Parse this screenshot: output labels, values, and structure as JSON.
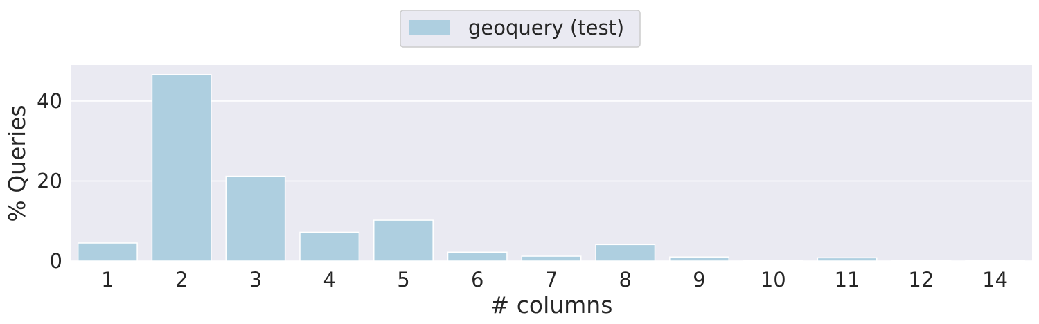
{
  "chart_data": {
    "type": "bar",
    "categories": [
      "1",
      "2",
      "3",
      "4",
      "5",
      "6",
      "7",
      "8",
      "9",
      "10",
      "11",
      "12",
      "14"
    ],
    "series": [
      {
        "name": "geoquery (test)",
        "values": [
          4.5,
          46.6,
          21.2,
          7.2,
          10.2,
          2.2,
          1.2,
          4.1,
          1.0,
          0.2,
          0.8,
          0.2,
          0.2
        ]
      }
    ],
    "xlabel": "# columns",
    "ylabel": "% Queries",
    "yticks": [
      0,
      20,
      40
    ],
    "ylim": [
      0,
      49
    ],
    "grid": true,
    "legend": "top-center",
    "colors": {
      "bar": "#aecfe0",
      "plot_background": "#eaeaf2",
      "grid": "#ffffff",
      "text": "#262626"
    }
  }
}
